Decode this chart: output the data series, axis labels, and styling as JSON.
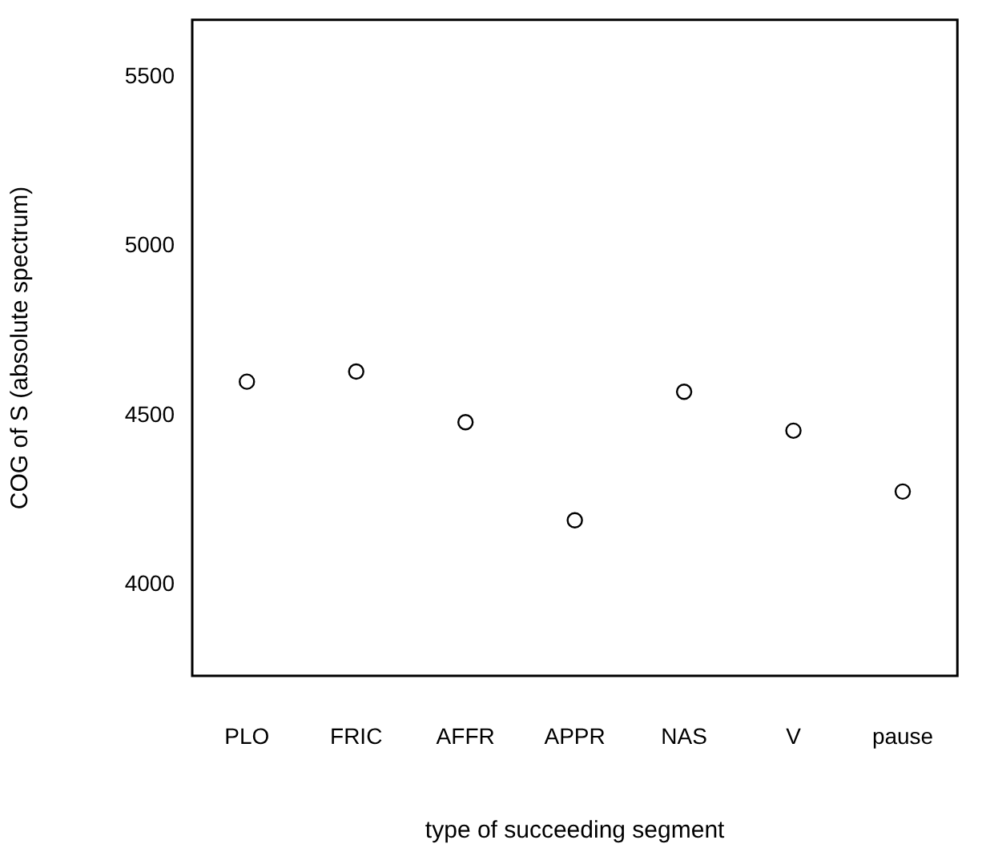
{
  "chart_data": {
    "type": "scatter",
    "xlabel": "type of succeeding segment",
    "ylabel": "COG of S (absolute spectrum)",
    "categories": [
      "PLO",
      "FRIC",
      "AFFR",
      "APPR",
      "NAS",
      "V",
      "pause"
    ],
    "values": [
      4600,
      4630,
      4480,
      4190,
      4570,
      4455,
      4275
    ],
    "color": "#000000",
    "marker": "circle",
    "ylim": [
      3730,
      5670
    ],
    "yticks": [
      4000,
      4500,
      5000,
      5500
    ],
    "grid": false,
    "legend": false
  }
}
